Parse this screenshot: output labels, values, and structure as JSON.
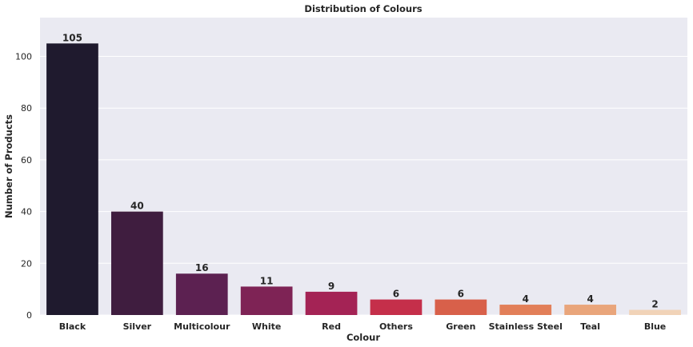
{
  "chart_data": {
    "type": "bar",
    "title": "Distribution of Colours",
    "xlabel": "Colour",
    "ylabel": "Number of Products",
    "categories": [
      "Black",
      "Silver",
      "Multicolour",
      "White",
      "Red",
      "Others",
      "Green",
      "Stainless Steel",
      "Teal",
      "Blue"
    ],
    "values": [
      105,
      40,
      16,
      11,
      9,
      6,
      6,
      4,
      4,
      2
    ],
    "data_labels": [
      "105",
      "40",
      "16",
      "11",
      "9",
      "6",
      "6",
      "4",
      "4",
      "2"
    ],
    "bar_colors": [
      "#1f1a2e",
      "#3f1d3f",
      "#5c2151",
      "#7e2355",
      "#a42355",
      "#c52f4a",
      "#d8604a",
      "#e27f59",
      "#e9a57b",
      "#f1d3b8"
    ],
    "ylim": [
      0,
      115
    ],
    "yticks": [
      0,
      20,
      40,
      60,
      80,
      100
    ],
    "ytick_labels": [
      "0",
      "20",
      "40",
      "60",
      "80",
      "100"
    ],
    "grid": true,
    "background": "#eaeaf2"
  }
}
